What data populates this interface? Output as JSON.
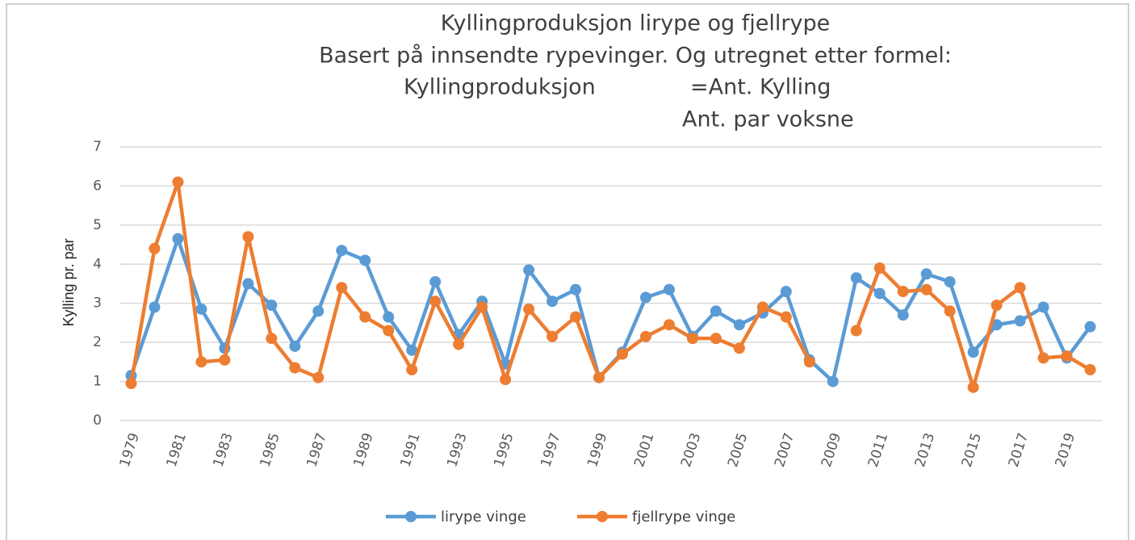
{
  "chart_data": {
    "type": "line",
    "title": [
      "Kyllingproduksjon lirype og fjellrype",
      "Basert på innsendte rypevinger. Og utregnet etter formel:"
    ],
    "annotations": [
      "Kyllingproduksjon",
      "=Ant. Kylling",
      "Ant. par voksne"
    ],
    "y_label": "Kylling pr. par",
    "categories": [
      "1979",
      null,
      "1981",
      null,
      "1983",
      null,
      "1985",
      null,
      "1987",
      null,
      "1989",
      null,
      "1991",
      null,
      "1993",
      null,
      "1995",
      null,
      "1997",
      null,
      "1999",
      null,
      "2001",
      null,
      "2003",
      null,
      "2005",
      null,
      "2007",
      null,
      "2009",
      null,
      "2011",
      null,
      "2013",
      null,
      "2015",
      null,
      "2017",
      null,
      "2019",
      null
    ],
    "series": [
      {
        "name": "lirype vinge",
        "color": "#5b9bd5",
        "values": [
          1.15,
          2.9,
          4.65,
          2.85,
          1.85,
          3.5,
          2.95,
          1.9,
          2.8,
          4.35,
          4.1,
          2.65,
          1.8,
          3.55,
          2.2,
          3.05,
          1.45,
          3.85,
          3.05,
          3.35,
          1.1,
          1.75,
          3.15,
          3.35,
          2.15,
          2.8,
          2.45,
          2.75,
          3.3,
          1.55,
          1.0,
          3.65,
          3.25,
          2.7,
          3.75,
          3.55,
          1.75,
          2.45,
          2.55,
          2.9,
          1.6,
          2.4
        ]
      },
      {
        "name": "fjellrype vinge",
        "color": "#ed7d31",
        "values": [
          0.95,
          4.4,
          6.1,
          1.5,
          1.55,
          4.7,
          2.1,
          1.35,
          1.1,
          3.4,
          2.65,
          2.3,
          1.3,
          3.05,
          1.95,
          2.9,
          1.05,
          2.85,
          2.15,
          2.65,
          1.1,
          1.7,
          2.15,
          2.45,
          2.1,
          2.1,
          1.85,
          2.9,
          2.65,
          1.5,
          null,
          2.3,
          3.9,
          3.3,
          3.35,
          2.8,
          0.85,
          2.95,
          3.4,
          1.6,
          1.65,
          1.3
        ]
      }
    ],
    "ylim": [
      0,
      7
    ],
    "yticks": [
      0,
      1,
      2,
      3,
      4,
      5,
      6,
      7
    ],
    "grid": true,
    "legend": "bottom"
  }
}
